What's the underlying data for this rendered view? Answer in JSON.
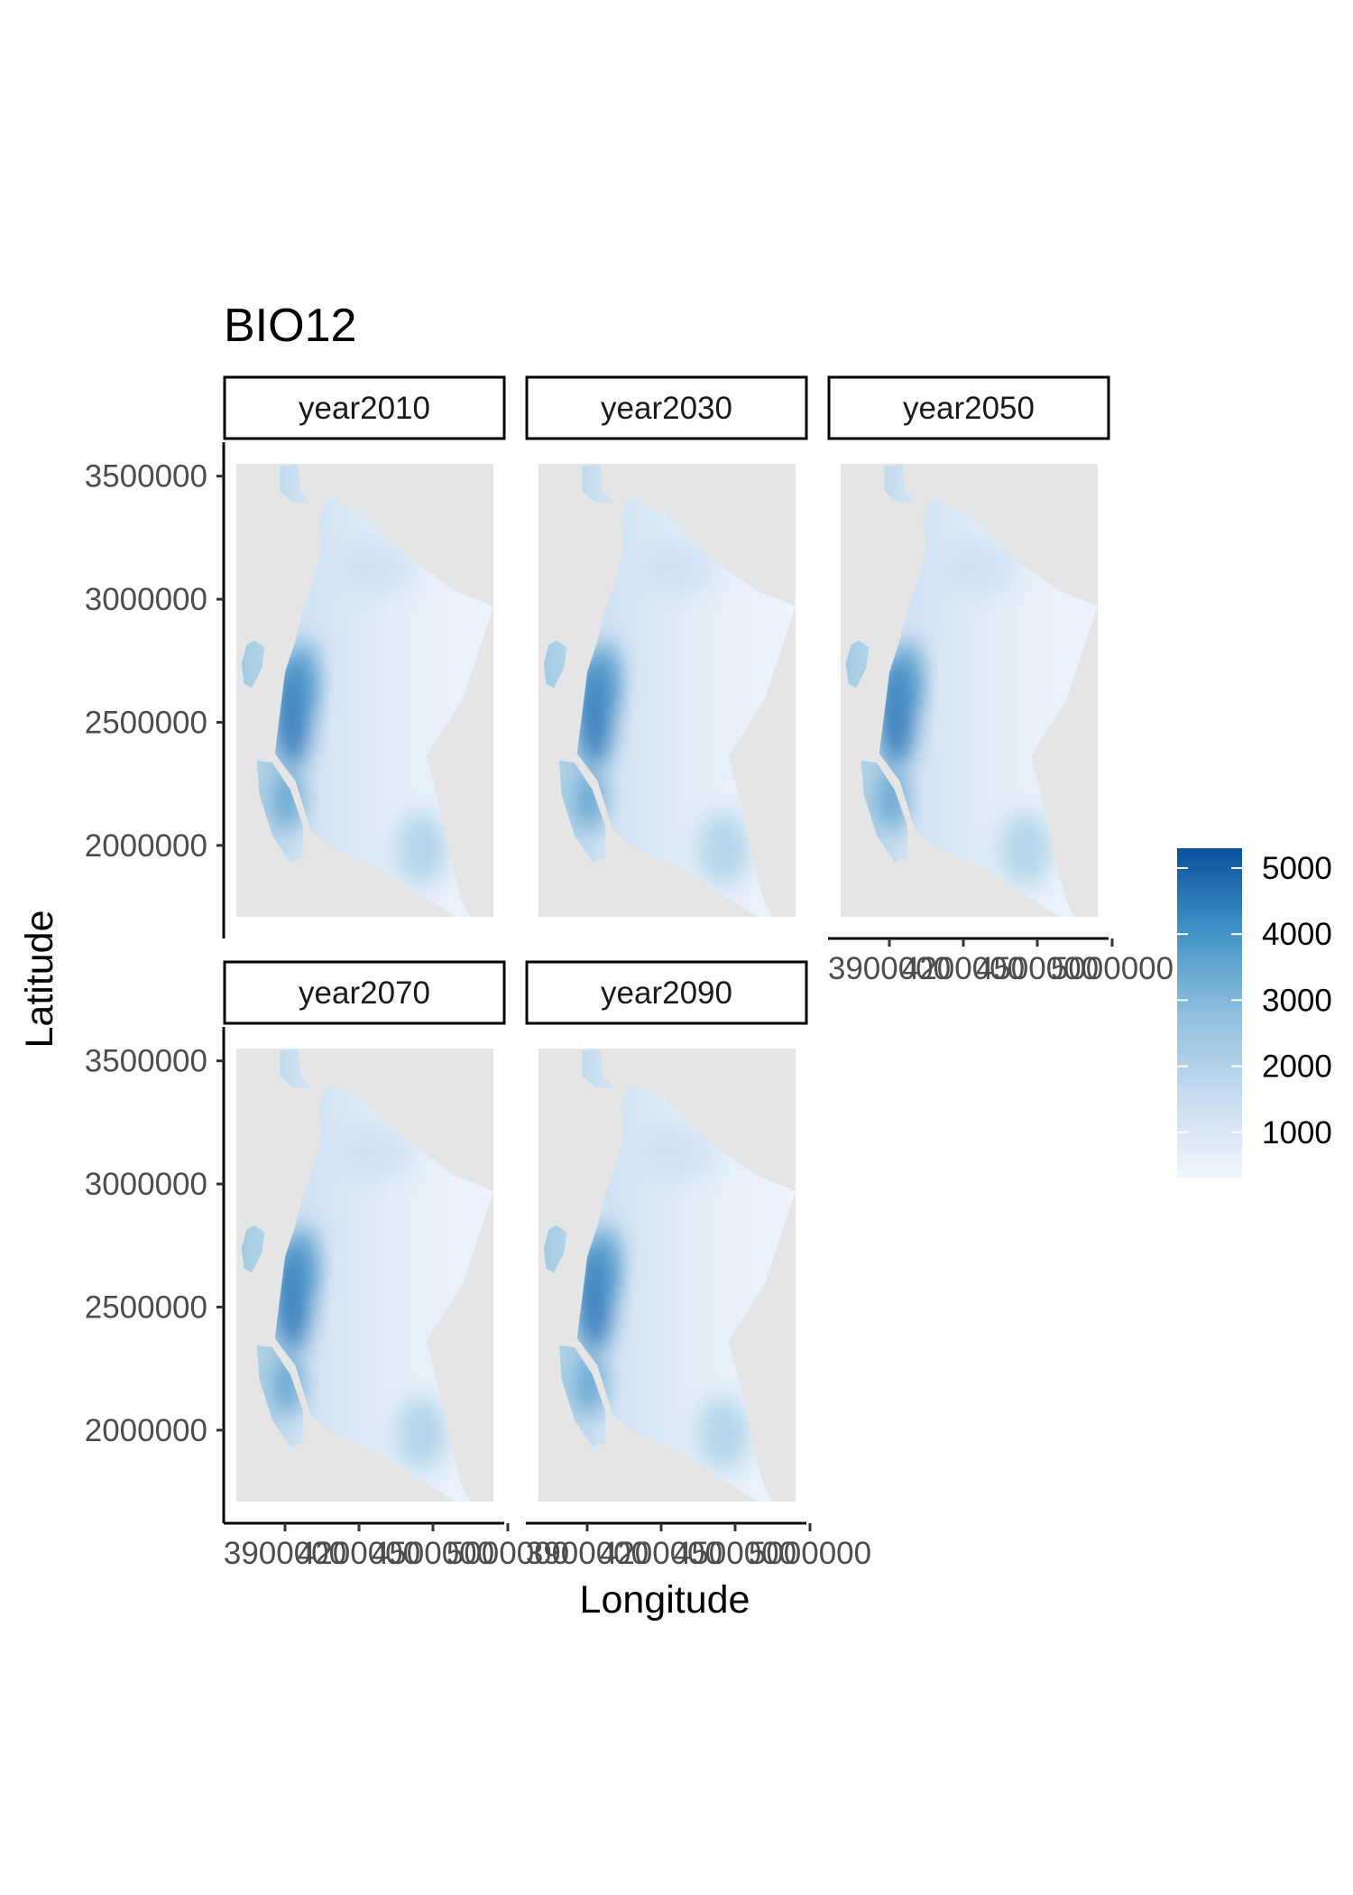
{
  "chart_data": {
    "type": "heatmap",
    "title": "BIO12",
    "xlabel": "Longitude",
    "ylabel": "Latitude",
    "panels": [
      {
        "label": "year2010"
      },
      {
        "label": "year2030"
      },
      {
        "label": "year2050"
      },
      {
        "label": "year2070"
      },
      {
        "label": "year2090"
      }
    ],
    "layout": {
      "columns": 3,
      "rows": 2
    },
    "x_ticks": [
      3900000,
      4200000,
      4500000,
      5000000
    ],
    "x_tick_labels": [
      "3900000",
      "4200000",
      "4500000",
      "5000000"
    ],
    "y_ticks": [
      2000000,
      2500000,
      3000000,
      3500000
    ],
    "y_tick_labels": [
      "2000000",
      "2500000",
      "3000000",
      "3500000"
    ],
    "ylim": [
      1710000,
      3550000
    ],
    "legend": {
      "position": "right",
      "ticks": [
        1000,
        2000,
        3000,
        4000,
        5000
      ],
      "labels": [
        "1000",
        "2000",
        "3000",
        "4000",
        "5000"
      ],
      "range": [
        300,
        5300
      ],
      "low_color": "#edf3fc",
      "high_color": "#08519c"
    },
    "panel_background": "#e5e5e5",
    "grid": false
  }
}
